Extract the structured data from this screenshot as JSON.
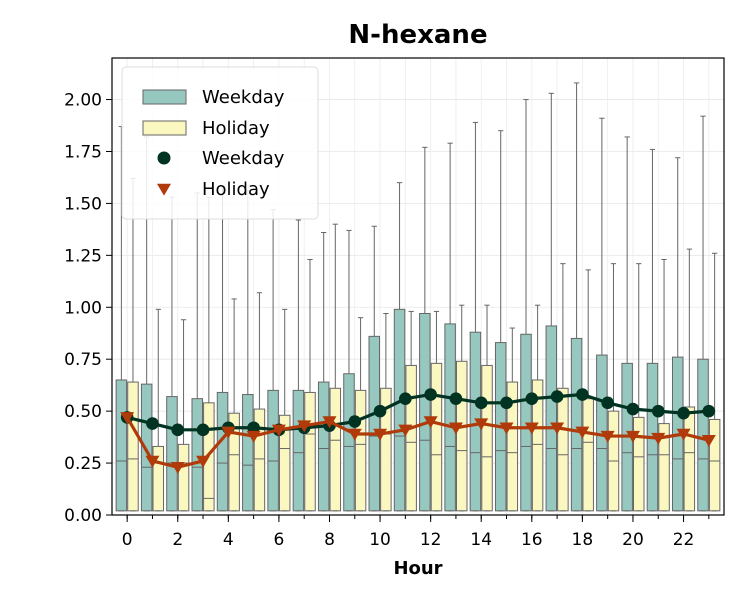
{
  "chart_data": {
    "type": "box+line",
    "title": "N-hexane",
    "xlabel": "Hour",
    "ylabel": "",
    "ylim": [
      0,
      2.2
    ],
    "xlim": [
      -0.6,
      23.6
    ],
    "yticks": [
      0.0,
      0.25,
      0.5,
      0.75,
      1.0,
      1.25,
      1.5,
      1.75,
      2.0
    ],
    "ytick_labels": [
      "0.00",
      "0.25",
      "0.50",
      "0.75",
      "1.00",
      "1.25",
      "1.50",
      "1.75",
      "2.00"
    ],
    "xticks": [
      0,
      2,
      4,
      6,
      8,
      10,
      12,
      14,
      16,
      18,
      20,
      22
    ],
    "xtick_labels": [
      "0",
      "2",
      "4",
      "6",
      "8",
      "10",
      "12",
      "14",
      "16",
      "18",
      "20",
      "22"
    ],
    "grid": true,
    "legend_position": "top-left",
    "legend": [
      {
        "label": "Weekday",
        "kind": "box",
        "color": "#96c8c0"
      },
      {
        "label": "Holiday",
        "kind": "box",
        "color": "#fbf7c0"
      },
      {
        "label": "Weekday",
        "kind": "marker-circle",
        "color": "#003322"
      },
      {
        "label": "Holiday",
        "kind": "marker-triangle",
        "color": "#b03a0a"
      }
    ],
    "hours": [
      0,
      1,
      2,
      3,
      4,
      5,
      6,
      7,
      8,
      9,
      10,
      11,
      12,
      13,
      14,
      15,
      16,
      17,
      18,
      19,
      20,
      21,
      22,
      23
    ],
    "box_series": [
      {
        "name": "Weekday",
        "color": "#96c8c0",
        "q3": [
          0.65,
          0.63,
          0.57,
          0.56,
          0.59,
          0.58,
          0.6,
          0.6,
          0.64,
          0.68,
          0.86,
          0.99,
          0.97,
          0.92,
          0.88,
          0.83,
          0.87,
          0.91,
          0.85,
          0.77,
          0.73,
          0.73,
          0.76,
          0.75
        ],
        "median": [
          0.26,
          0.23,
          0.25,
          0.23,
          0.25,
          0.24,
          0.26,
          0.3,
          0.32,
          0.33,
          0.38,
          0.38,
          0.36,
          0.33,
          0.3,
          0.31,
          0.33,
          0.32,
          0.32,
          0.32,
          0.3,
          0.29,
          0.27,
          0.27
        ],
        "q1": [
          0.02,
          0.02,
          0.02,
          0.02,
          0.02,
          0.02,
          0.02,
          0.02,
          0.02,
          0.02,
          0.02,
          0.02,
          0.02,
          0.02,
          0.02,
          0.02,
          0.02,
          0.02,
          0.02,
          0.02,
          0.02,
          0.02,
          0.02,
          0.02
        ],
        "whisker_high": [
          1.87,
          1.82,
          1.53,
          1.55,
          1.58,
          1.56,
          1.47,
          1.42,
          1.36,
          1.37,
          1.39,
          1.6,
          1.77,
          1.79,
          1.89,
          1.85,
          2.0,
          2.03,
          2.08,
          1.91,
          1.82,
          1.76,
          1.72,
          1.92
        ]
      },
      {
        "name": "Holiday",
        "color": "#fbf7c0",
        "q3": [
          0.64,
          0.33,
          0.34,
          0.54,
          0.49,
          0.51,
          0.48,
          0.59,
          0.61,
          0.6,
          0.61,
          0.72,
          0.73,
          0.74,
          0.72,
          0.64,
          0.65,
          0.61,
          0.56,
          0.5,
          0.47,
          0.44,
          0.52,
          0.46
        ],
        "median": [
          0.27,
          0.25,
          0.25,
          0.08,
          0.29,
          0.27,
          0.32,
          0.39,
          0.36,
          0.34,
          0.39,
          0.35,
          0.29,
          0.31,
          0.28,
          0.3,
          0.34,
          0.29,
          0.35,
          0.26,
          0.28,
          0.29,
          0.3,
          0.26
        ],
        "q1": [
          0.02,
          0.02,
          0.02,
          0.02,
          0.02,
          0.02,
          0.02,
          0.02,
          0.02,
          0.02,
          0.02,
          0.02,
          0.02,
          0.02,
          0.02,
          0.02,
          0.02,
          0.02,
          0.02,
          0.02,
          0.02,
          0.02,
          0.02,
          0.02
        ],
        "whisker_high": [
          1.62,
          0.99,
          0.94,
          1.53,
          1.04,
          1.07,
          0.99,
          1.23,
          1.4,
          0.95,
          0.97,
          0.98,
          0.98,
          1.01,
          1.01,
          0.9,
          1.01,
          1.21,
          1.18,
          1.21,
          1.21,
          1.23,
          1.28,
          1.26
        ]
      }
    ],
    "line_series": [
      {
        "name": "Weekday",
        "marker": "circle",
        "color": "#003322",
        "values": [
          0.47,
          0.44,
          0.41,
          0.41,
          0.42,
          0.42,
          0.41,
          0.42,
          0.43,
          0.45,
          0.5,
          0.56,
          0.58,
          0.56,
          0.54,
          0.54,
          0.56,
          0.57,
          0.58,
          0.54,
          0.51,
          0.5,
          0.49,
          0.5
        ]
      },
      {
        "name": "Holiday",
        "marker": "triangle-down",
        "color": "#b03a0a",
        "values": [
          0.47,
          0.26,
          0.23,
          0.26,
          0.4,
          0.38,
          0.41,
          0.43,
          0.45,
          0.39,
          0.39,
          0.41,
          0.45,
          0.42,
          0.44,
          0.42,
          0.42,
          0.42,
          0.4,
          0.38,
          0.38,
          0.37,
          0.39,
          0.36
        ]
      }
    ]
  }
}
